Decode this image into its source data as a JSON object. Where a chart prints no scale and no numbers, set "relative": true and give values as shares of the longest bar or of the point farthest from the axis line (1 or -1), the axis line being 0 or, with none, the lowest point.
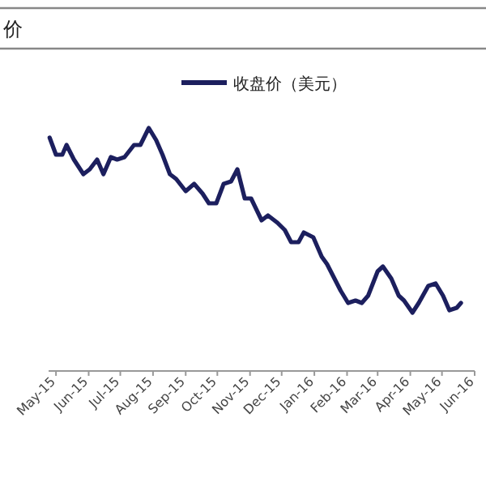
{
  "chart_data": {
    "type": "line",
    "title": "价",
    "relative": true,
    "legend": "top",
    "x": [
      "2015-04-25",
      "2015-05-01",
      "2015-05-07",
      "2015-05-11",
      "2015-05-18",
      "2015-05-27",
      "2015-06-02",
      "2015-06-09",
      "2015-06-15",
      "2015-06-22",
      "2015-06-28",
      "2015-07-05",
      "2015-07-14",
      "2015-07-20",
      "2015-07-28",
      "2015-08-04",
      "2015-08-10",
      "2015-08-17",
      "2015-08-23",
      "2015-09-01",
      "2015-09-09",
      "2015-09-17",
      "2015-09-23",
      "2015-09-30",
      "2015-10-07",
      "2015-10-14",
      "2015-10-20",
      "2015-10-27",
      "2015-11-02",
      "2015-11-12",
      "2015-11-18",
      "2015-11-27",
      "2015-12-04",
      "2015-12-10",
      "2015-12-17",
      "2015-12-22",
      "2015-12-31",
      "2016-01-08",
      "2016-01-13",
      "2016-01-26",
      "2016-02-02",
      "2016-02-09",
      "2016-02-15",
      "2016-02-21",
      "2016-03-01",
      "2016-03-06",
      "2016-03-14",
      "2016-03-21",
      "2016-03-26",
      "2016-04-03",
      "2016-04-09",
      "2016-04-18",
      "2016-04-25",
      "2016-05-02",
      "2016-05-08",
      "2016-05-15",
      "2016-05-19"
    ],
    "series": [
      {
        "name": "收盘价（美元）",
        "color": "#1c1f5e",
        "values": [
          0.96,
          0.89,
          0.89,
          0.93,
          0.87,
          0.81,
          0.83,
          0.87,
          0.81,
          0.88,
          0.87,
          0.88,
          0.93,
          0.93,
          1,
          0.95,
          0.89,
          0.81,
          0.79,
          0.74,
          0.77,
          0.73,
          0.69,
          0.69,
          0.77,
          0.78,
          0.83,
          0.71,
          0.71,
          0.62,
          0.64,
          0.61,
          0.58,
          0.53,
          0.53,
          0.57,
          0.55,
          0.47,
          0.44,
          0.33,
          0.28,
          0.29,
          0.28,
          0.31,
          0.41,
          0.43,
          0.38,
          0.31,
          0.29,
          0.24,
          0.28,
          0.35,
          0.36,
          0.31,
          0.25,
          0.26,
          0.28
        ]
      }
    ],
    "xlim": [
      "2015-04-24",
      "2016-06-01"
    ],
    "xticks": [
      {
        "value": "2015-05-01",
        "label": "May-15"
      },
      {
        "value": "2015-06-01",
        "label": "Jun-15"
      },
      {
        "value": "2015-07-01",
        "label": "Jul-15"
      },
      {
        "value": "2015-08-01",
        "label": "Aug-15"
      },
      {
        "value": "2015-09-01",
        "label": "Sep-15"
      },
      {
        "value": "2015-10-01",
        "label": "Oct-15"
      },
      {
        "value": "2015-11-01",
        "label": "Nov-15"
      },
      {
        "value": "2015-12-01",
        "label": "Dec-15"
      },
      {
        "value": "2016-01-01",
        "label": "Jan-16"
      },
      {
        "value": "2016-02-01",
        "label": "Feb-16"
      },
      {
        "value": "2016-03-01",
        "label": "Mar-16"
      },
      {
        "value": "2016-04-01",
        "label": "Apr-16"
      },
      {
        "value": "2016-05-01",
        "label": "May-16"
      },
      {
        "value": "2016-06-01",
        "label": "Jun-16"
      }
    ]
  }
}
